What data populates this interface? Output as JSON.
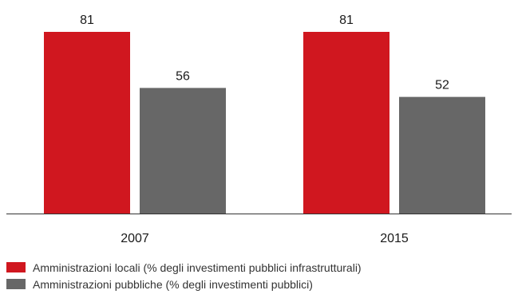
{
  "chart_data": {
    "type": "bar",
    "categories": [
      "2007",
      "2015"
    ],
    "series": [
      {
        "name": "Amministrazioni locali (% degli investimenti pubblici infrastrutturali)",
        "color": "#d0171f",
        "values": [
          81,
          81
        ]
      },
      {
        "name": "Amministrazioni pubbliche (% degli investimenti pubblici)",
        "color": "#676767",
        "values": [
          56,
          52
        ]
      }
    ],
    "title": "",
    "xlabel": "",
    "ylabel": "",
    "ylim": [
      0,
      81
    ],
    "grid": false,
    "legend_position": "bottom-left",
    "data_labels": true,
    "axis_color": "#333333"
  }
}
